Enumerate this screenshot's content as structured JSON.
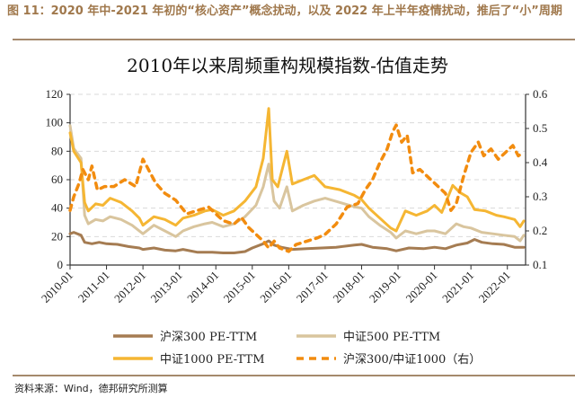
{
  "figure": {
    "title": "图 11：2020 年中-2021 年初的“核心资产”概念扰动，以及 2022 年上半年疫情扰动，推后了“小”周期",
    "source": "资料来源：Wind，德邦研究所测算"
  },
  "colors": {
    "csi300": "#a57c52",
    "csi500": "#d9c59e",
    "csi1000": "#f5b633",
    "ratio": "#f28c0f",
    "grid": "#d9d9d9",
    "accent_rule": "#a5896c"
  },
  "chart_data": {
    "type": "line",
    "title": "2010年以来周频重构规模指数-估值走势",
    "xlabel": "",
    "ylabel": "",
    "y2label": "",
    "x_tick_labels": [
      "2010-01",
      "2011-01",
      "2012-01",
      "2013-01",
      "2014-01",
      "2015-01",
      "2016-01",
      "2017-01",
      "2018-01",
      "2019-01",
      "2020-01",
      "2021-01",
      "2022-01"
    ],
    "xlim": [
      2010.0,
      2022.5
    ],
    "ylim": [
      0,
      120
    ],
    "y_ticks": [
      0,
      20,
      40,
      60,
      80,
      100,
      120
    ],
    "y2lim": [
      0.1,
      0.6
    ],
    "y2_ticks": [
      0.1,
      0.2,
      0.3,
      0.4,
      0.5,
      0.6
    ],
    "grid": "horizontal dashed",
    "legend_position": "bottom",
    "series": [
      {
        "name": "沪深300 PE-TTM",
        "axis": "left",
        "style": "solid",
        "color_key": "csi300",
        "x": [
          2010.0,
          2010.1,
          2010.3,
          2010.4,
          2010.6,
          2010.8,
          2011.0,
          2011.3,
          2011.6,
          2011.9,
          2012.0,
          2012.3,
          2012.6,
          2012.9,
          2013.1,
          2013.5,
          2013.9,
          2014.2,
          2014.5,
          2014.8,
          2015.0,
          2015.3,
          2015.45,
          2015.6,
          2015.8,
          2016.1,
          2016.5,
          2016.9,
          2017.3,
          2017.8,
          2018.0,
          2018.3,
          2018.7,
          2018.95,
          2019.3,
          2019.7,
          2020.0,
          2020.3,
          2020.6,
          2020.9,
          2021.1,
          2021.3,
          2021.6,
          2021.9,
          2022.2,
          2022.45
        ],
        "values": [
          22,
          23,
          21,
          16,
          15,
          16,
          15,
          14.5,
          13,
          12,
          11,
          12,
          10.5,
          10,
          11,
          9,
          9,
          8.5,
          8.5,
          9.5,
          12,
          15,
          17,
          14,
          12.5,
          11,
          11.5,
          12,
          12.5,
          14,
          14.5,
          12.5,
          11.5,
          10,
          12,
          11.5,
          12.5,
          11.5,
          14,
          15.5,
          18,
          16,
          15,
          14.5,
          12.5,
          12.5
        ]
      },
      {
        "name": "中证500 PE-TTM",
        "axis": "left",
        "style": "solid",
        "color_key": "csi500",
        "x": [
          2010.0,
          2010.1,
          2010.3,
          2010.4,
          2010.5,
          2010.7,
          2010.9,
          2011.1,
          2011.4,
          2011.7,
          2012.0,
          2012.3,
          2012.6,
          2012.9,
          2013.1,
          2013.4,
          2013.7,
          2013.9,
          2014.2,
          2014.5,
          2014.8,
          2015.1,
          2015.3,
          2015.45,
          2015.6,
          2015.75,
          2015.95,
          2016.1,
          2016.4,
          2016.7,
          2017.0,
          2017.4,
          2017.8,
          2018.0,
          2018.2,
          2018.5,
          2018.8,
          2018.95,
          2019.2,
          2019.5,
          2019.8,
          2020.0,
          2020.3,
          2020.6,
          2020.8,
          2021.0,
          2021.3,
          2021.6,
          2021.9,
          2022.2,
          2022.35,
          2022.45
        ],
        "values": [
          98,
          82,
          75,
          35,
          29,
          32,
          31,
          34,
          32,
          28,
          22,
          28,
          24,
          20,
          24,
          27,
          29,
          30,
          27,
          29,
          34,
          42,
          55,
          71,
          45,
          40,
          55,
          38,
          42,
          45,
          47,
          44,
          41,
          40,
          34,
          28,
          23,
          19,
          24,
          22,
          24,
          24,
          22,
          29,
          27,
          26,
          23,
          22,
          21,
          20,
          17,
          21
        ]
      },
      {
        "name": "中证1000 PE-TTM",
        "axis": "left",
        "style": "solid",
        "color_key": "csi1000",
        "x": [
          2010.0,
          2010.1,
          2010.3,
          2010.4,
          2010.5,
          2010.7,
          2010.9,
          2011.1,
          2011.4,
          2011.7,
          2011.9,
          2012.0,
          2012.3,
          2012.6,
          2012.9,
          2013.1,
          2013.4,
          2013.7,
          2013.9,
          2014.2,
          2014.5,
          2014.8,
          2015.1,
          2015.3,
          2015.45,
          2015.55,
          2015.7,
          2015.95,
          2016.1,
          2016.4,
          2016.7,
          2017.0,
          2017.4,
          2017.8,
          2018.0,
          2018.2,
          2018.5,
          2018.8,
          2018.95,
          2019.2,
          2019.5,
          2019.8,
          2020.0,
          2020.2,
          2020.5,
          2020.7,
          2020.9,
          2021.1,
          2021.4,
          2021.7,
          2021.9,
          2022.2,
          2022.35,
          2022.45
        ],
        "values": [
          93,
          80,
          72,
          44,
          38,
          43,
          42,
          47,
          44,
          38,
          33,
          28,
          34,
          32,
          28,
          33,
          35,
          38,
          39,
          35,
          38,
          45,
          55,
          75,
          110,
          60,
          55,
          80,
          57,
          60,
          63,
          55,
          53,
          49,
          46,
          40,
          33,
          26,
          24,
          38,
          35,
          38,
          42,
          37,
          56,
          51,
          48,
          39,
          38,
          35,
          34,
          32,
          27,
          31
        ]
      },
      {
        "name": "沪深300/中证1000（右）",
        "axis": "right",
        "style": "dashed",
        "color_key": "ratio",
        "x": [
          2010.0,
          2010.1,
          2010.25,
          2010.35,
          2010.5,
          2010.6,
          2010.75,
          2010.95,
          2011.2,
          2011.5,
          2011.8,
          2012.0,
          2012.1,
          2012.35,
          2012.6,
          2012.9,
          2013.2,
          2013.5,
          2013.8,
          2014.0,
          2014.2,
          2014.5,
          2014.7,
          2014.9,
          2015.1,
          2015.3,
          2015.45,
          2015.6,
          2015.75,
          2016.0,
          2016.2,
          2016.5,
          2016.8,
          2017.0,
          2017.3,
          2017.6,
          2017.9,
          2018.1,
          2018.3,
          2018.5,
          2018.7,
          2018.85,
          2018.95,
          2019.1,
          2019.25,
          2019.4,
          2019.6,
          2019.8,
          2020.1,
          2020.3,
          2020.45,
          2020.6,
          2020.8,
          2021.0,
          2021.2,
          2021.35,
          2021.55,
          2021.75,
          2021.95,
          2022.15,
          2022.3,
          2022.45
        ],
        "values": [
          0.26,
          0.3,
          0.34,
          0.38,
          0.35,
          0.39,
          0.32,
          0.33,
          0.33,
          0.35,
          0.33,
          0.41,
          0.39,
          0.34,
          0.31,
          0.29,
          0.25,
          0.26,
          0.27,
          0.25,
          0.23,
          0.22,
          0.24,
          0.21,
          0.19,
          0.17,
          0.15,
          0.17,
          0.15,
          0.14,
          0.16,
          0.17,
          0.18,
          0.19,
          0.22,
          0.27,
          0.28,
          0.32,
          0.35,
          0.4,
          0.44,
          0.49,
          0.51,
          0.46,
          0.48,
          0.37,
          0.38,
          0.36,
          0.33,
          0.31,
          0.26,
          0.28,
          0.36,
          0.43,
          0.46,
          0.42,
          0.44,
          0.41,
          0.43,
          0.45,
          0.42,
          0.43
        ]
      }
    ]
  }
}
